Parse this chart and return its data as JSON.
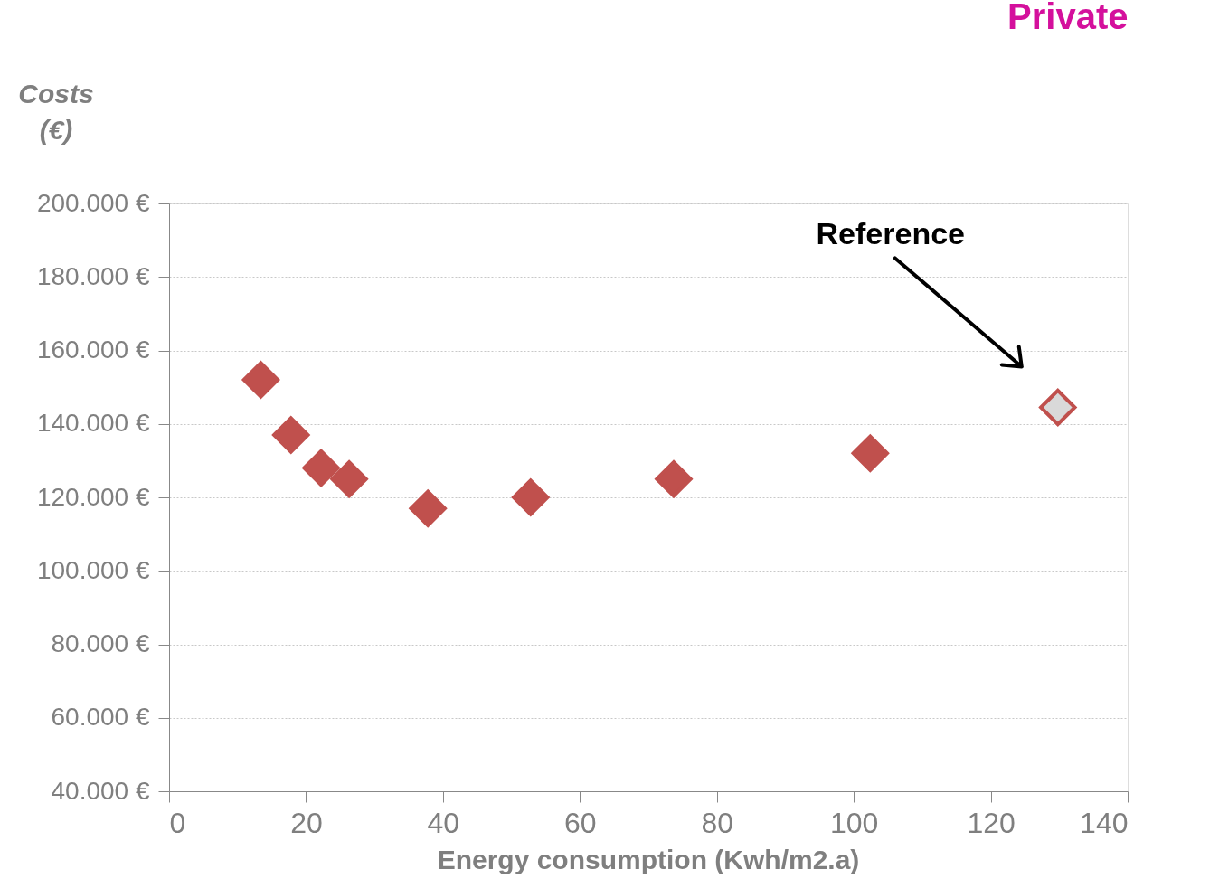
{
  "chart_data": {
    "type": "scatter",
    "title": "Private",
    "xlabel": "Energy consumption (Kwh/m2.a)",
    "ylabel": "Costs (€)",
    "series": [
      {
        "color": "#c0504d",
        "x": [
          13.4,
          17.8,
          22.2,
          26.3,
          37.8,
          52.8,
          73.7,
          102.4
        ],
        "values": [
          152000,
          137000,
          128000,
          125000,
          117000,
          120000,
          125000,
          132000
        ]
      },
      {
        "color": "#d9d9d9",
        "x": [
          129.8
        ],
        "values": [
          144500
        ]
      }
    ],
    "annotations": [
      "Reference"
    ],
    "xlim": [
      0,
      140
    ],
    "xticks": [
      0,
      20,
      40,
      60,
      80,
      100,
      120,
      140
    ],
    "ylim": [
      40000,
      200000
    ],
    "yticks": [
      {
        "value": 40000,
        "label": "40.000 €"
      },
      {
        "value": 60000,
        "label": "60.000 €"
      },
      {
        "value": 80000,
        "label": "80.000 €"
      },
      {
        "value": 100000,
        "label": "100.000 €"
      },
      {
        "value": 120000,
        "label": "120.000 €"
      },
      {
        "value": 140000,
        "label": "140.000 €"
      },
      {
        "value": 160000,
        "label": "160.000 €"
      },
      {
        "value": 180000,
        "label": "180.000 €"
      },
      {
        "value": 200000,
        "label": "200.000 €"
      }
    ],
    "grid": "y",
    "marker": "diamond"
  }
}
